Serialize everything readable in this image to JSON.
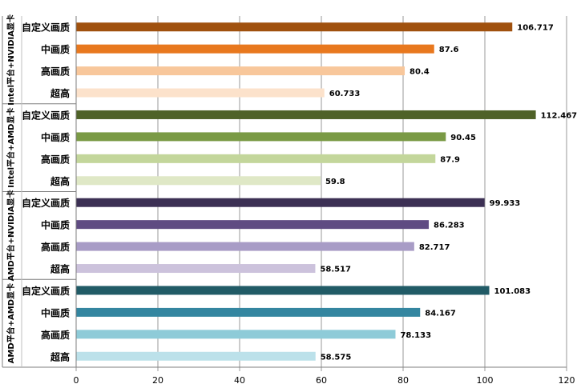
{
  "chart_data": {
    "type": "bar",
    "orientation": "horizontal",
    "grid": true,
    "xlim": [
      0,
      120
    ],
    "x_ticks": [
      "0",
      "20",
      "40",
      "60",
      "80",
      "100",
      "120"
    ],
    "xlabel": "",
    "ylabel": "",
    "groups": [
      {
        "label": "Intel平台+NVIDIA显卡",
        "categories": [
          "自定义画质",
          "中画质",
          "高画质",
          "超高"
        ],
        "values": [
          106.717,
          87.6,
          80.4,
          60.733
        ],
        "value_labels": [
          "106.717",
          "87.6",
          "80.4",
          "60.733"
        ],
        "colors": [
          "#A0510E",
          "#E8781E",
          "#F8C79B",
          "#FCE2CB"
        ]
      },
      {
        "label": "Intel平台+AMD显卡",
        "categories": [
          "自定义画质",
          "中画质",
          "高画质",
          "超高"
        ],
        "values": [
          112.467,
          90.45,
          87.9,
          59.8
        ],
        "value_labels": [
          "112.467",
          "90.45",
          "87.9",
          "59.8"
        ],
        "colors": [
          "#4F6228",
          "#7A9A45",
          "#C3D69B",
          "#DFE8C6"
        ]
      },
      {
        "label": "AMD平台+NVIDIA显卡",
        "categories": [
          "自定义画质",
          "中画质",
          "高画质",
          "超高"
        ],
        "values": [
          99.933,
          86.283,
          82.717,
          58.517
        ],
        "value_labels": [
          "99.933",
          "86.283",
          "82.717",
          "58.517"
        ],
        "colors": [
          "#3C3054",
          "#5F4B82",
          "#A89CC6",
          "#CCC2DC"
        ]
      },
      {
        "label": "AMD平台+AMD显卡",
        "categories": [
          "自定义画质",
          "中画质",
          "高画质",
          "超高"
        ],
        "values": [
          101.083,
          84.167,
          78.133,
          58.575
        ],
        "value_labels": [
          "101.083",
          "84.167",
          "78.133",
          "58.575"
        ],
        "colors": [
          "#215B66",
          "#3486A0",
          "#8ECBD8",
          "#BCE1EA"
        ]
      }
    ]
  }
}
